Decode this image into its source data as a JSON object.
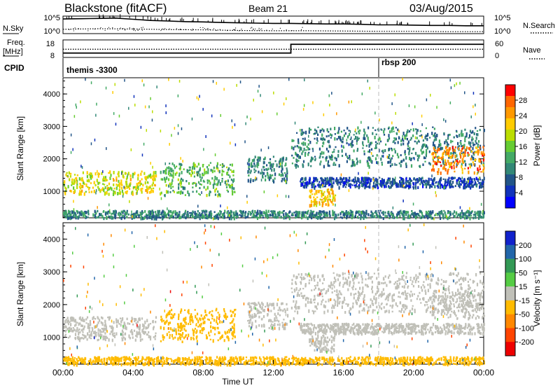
{
  "header": {
    "station": "Blackstone (fitACF)",
    "beam": "Beam 21",
    "date": "03/Aug/2015"
  },
  "status_panel": {
    "nsky_label": "N.Sky",
    "nsky_ticks": [
      "10^5",
      "10^0"
    ],
    "nsearch_label": "N.Search",
    "nsearch_ticks": [
      "10^5",
      "10^0"
    ],
    "freq_label": "Freq.",
    "freq_unit": "[MHz]",
    "freq_ticks": [
      "18",
      "8"
    ],
    "nave_label": "Nave",
    "nave_ticks": [
      "60",
      "0"
    ],
    "cpid_label": "CPID",
    "cpid_entries": [
      {
        "name": "themis -3300",
        "start_hour": 0
      },
      {
        "name": "rbsp 200",
        "start_hour": 18
      }
    ]
  },
  "axes": {
    "xlabel": "Time UT",
    "ylabel": "Slant Range [km]",
    "x_ticks": [
      "00:00",
      "04:00",
      "08:00",
      "12:00",
      "16:00",
      "20:00",
      "00:00"
    ],
    "y_ticks": [
      "1000",
      "2000",
      "3000",
      "4000"
    ],
    "xlim": [
      0,
      24
    ],
    "ylim": [
      180,
      4500
    ]
  },
  "power_scale": {
    "label": "Power [dB]",
    "ticks": [
      "28",
      "24",
      "20",
      "16",
      "12",
      "8",
      "4"
    ],
    "colors": [
      "#ff0000",
      "#ff6600",
      "#ff9900",
      "#ffcc00",
      "#bbdd00",
      "#66cc33",
      "#44aa66",
      "#338877",
      "#225588",
      "#1133bb",
      "#0000ff"
    ]
  },
  "velocity_scale": {
    "label": "Velocity [m s⁻¹]",
    "ticks": [
      "200",
      "100",
      "50",
      "15",
      "-15",
      "-50",
      "-100",
      "-200"
    ],
    "colors": [
      "#1122cc",
      "#2266aa",
      "#339955",
      "#55cc44",
      "#c0c0b8",
      "#ffbb00",
      "#ff8800",
      "#ff4400",
      "#ee0000"
    ]
  },
  "chart_data": [
    {
      "type": "line",
      "title": "N.Sky / N.Search",
      "series": [
        {
          "name": "N.Sky",
          "x": [
            0,
            1,
            2,
            3,
            4,
            5,
            6,
            7,
            8,
            9,
            10,
            11,
            12,
            13,
            14,
            15,
            16,
            17,
            18,
            19,
            20,
            21,
            22,
            23,
            24
          ],
          "values": [
            4.5,
            4.6,
            4.7,
            4.8,
            4.4,
            4.0,
            3.8,
            3.6,
            3.5,
            3.3,
            3.2,
            3.1,
            3.0,
            3.0,
            2.9,
            2.8,
            2.8,
            2.7,
            2.5,
            2.5,
            2.4,
            2.3,
            2.3,
            2.2,
            2.2
          ]
        },
        {
          "name": "N.Search",
          "x": [
            0,
            2,
            4,
            6,
            8,
            10,
            12,
            14,
            16,
            18,
            20,
            22,
            24
          ],
          "values": [
            1.0,
            1.2,
            1.1,
            0.9,
            0.8,
            0.6,
            0.5,
            0.5,
            0.4,
            0.3,
            0.3,
            0.2,
            0.2
          ]
        }
      ]
    },
    {
      "type": "line",
      "title": "Freq / Nave",
      "series": [
        {
          "name": "Freq.",
          "x": [
            0,
            13,
            13,
            24
          ],
          "values": [
            10.5,
            10.5,
            15.5,
            15.5
          ]
        },
        {
          "name": "Nave",
          "x": [
            0,
            24
          ],
          "values": [
            28,
            28
          ]
        }
      ]
    },
    {
      "type": "heatmap",
      "title": "Power",
      "xlabel": "Time UT",
      "ylabel": "Slant Range [km]",
      "xlim": [
        0,
        24
      ],
      "ylim": [
        180,
        4500
      ],
      "value_label": "Power [dB]",
      "regions": [
        {
          "t0": 0.0,
          "t1": 5.3,
          "r_center": 1300,
          "r_width": 350,
          "power": 20
        },
        {
          "t0": 5.5,
          "t1": 9.8,
          "r_center": 1400,
          "r_width": 500,
          "power": 14
        },
        {
          "t0": 10.5,
          "t1": 12.8,
          "r_center": 1700,
          "r_width": 400,
          "power": 10
        },
        {
          "t0": 13.0,
          "t1": 24.0,
          "r_center": 2400,
          "r_width": 600,
          "power": 10
        },
        {
          "t0": 13.5,
          "t1": 24.0,
          "r_center": 1300,
          "r_width": 150,
          "power": 6
        },
        {
          "t0": 14.0,
          "t1": 15.5,
          "r_center": 850,
          "r_width": 250,
          "power": 22
        },
        {
          "t0": 21.0,
          "t1": 24.0,
          "r_center": 2000,
          "r_width": 400,
          "power": 26
        },
        {
          "t0": 0.0,
          "t1": 24.0,
          "r_center": 280,
          "r_width": 150,
          "power": 10
        }
      ]
    },
    {
      "type": "heatmap",
      "title": "Velocity",
      "xlabel": "Time UT",
      "ylabel": "Slant Range [km]",
      "xlim": [
        0,
        24
      ],
      "ylim": [
        180,
        4500
      ],
      "value_label": "Velocity [m s⁻¹]",
      "regions": [
        {
          "t0": 0.0,
          "t1": 5.3,
          "r_center": 1300,
          "r_width": 350,
          "velocity": 0
        },
        {
          "t0": 5.5,
          "t1": 9.8,
          "r_center": 1400,
          "r_width": 500,
          "velocity": -60
        },
        {
          "t0": 10.5,
          "t1": 12.8,
          "r_center": 1700,
          "r_width": 400,
          "velocity": 0
        },
        {
          "t0": 13.0,
          "t1": 24.0,
          "r_center": 2400,
          "r_width": 600,
          "velocity": 0
        },
        {
          "t0": 13.5,
          "t1": 24.0,
          "r_center": 1300,
          "r_width": 150,
          "velocity": 0
        },
        {
          "t0": 14.0,
          "t1": 15.5,
          "r_center": 850,
          "r_width": 250,
          "velocity": 0
        },
        {
          "t0": 21.0,
          "t1": 24.0,
          "r_center": 2000,
          "r_width": 400,
          "velocity": 0
        },
        {
          "t0": 0.0,
          "t1": 24.0,
          "r_center": 280,
          "r_width": 150,
          "velocity": -60
        }
      ]
    }
  ]
}
